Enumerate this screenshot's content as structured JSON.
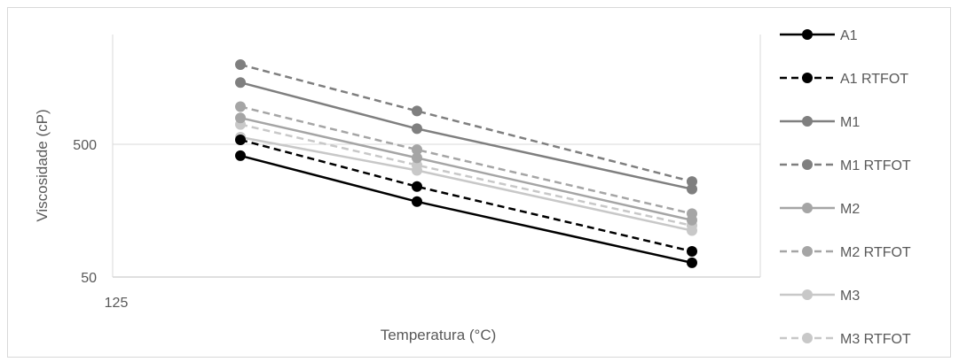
{
  "chart_data": {
    "type": "line",
    "title": "",
    "xlabel": "Temperatura (°C)",
    "ylabel": "Viscosidade (cP)",
    "y_scale": "log",
    "ylim": [
      50,
      2000
    ],
    "x_tick_labels": [
      "125"
    ],
    "y_tick_labels": [
      "500",
      "50"
    ],
    "y_tick_values": [
      500,
      50
    ],
    "x": [
      135,
      150,
      175
    ],
    "grid": "horizontal",
    "legend_position": "right",
    "series": [
      {
        "name": "A1",
        "values": [
          410,
          185,
          64
        ],
        "color": "#000000",
        "dashed": false
      },
      {
        "name": "A1 RTFOT",
        "values": [
          540,
          240,
          78
        ],
        "color": "#000000",
        "dashed": true
      },
      {
        "name": "M1",
        "values": [
          1460,
          655,
          230
        ],
        "color": "#7f7f7f",
        "dashed": false
      },
      {
        "name": "M1 RTFOT",
        "values": [
          1990,
          890,
          262
        ],
        "color": "#7f7f7f",
        "dashed": true
      },
      {
        "name": "M2",
        "values": [
          790,
          395,
          134
        ],
        "color": "#a5a5a5",
        "dashed": false
      },
      {
        "name": "M2 RTFOT",
        "values": [
          960,
          455,
          150
        ],
        "color": "#a5a5a5",
        "dashed": true
      },
      {
        "name": "M3",
        "values": [
          565,
          318,
          112
        ],
        "color": "#c8c8c8",
        "dashed": false
      },
      {
        "name": "M3 RTFOT",
        "values": [
          705,
          348,
          122
        ],
        "color": "#c8c8c8",
        "dashed": true
      }
    ]
  }
}
